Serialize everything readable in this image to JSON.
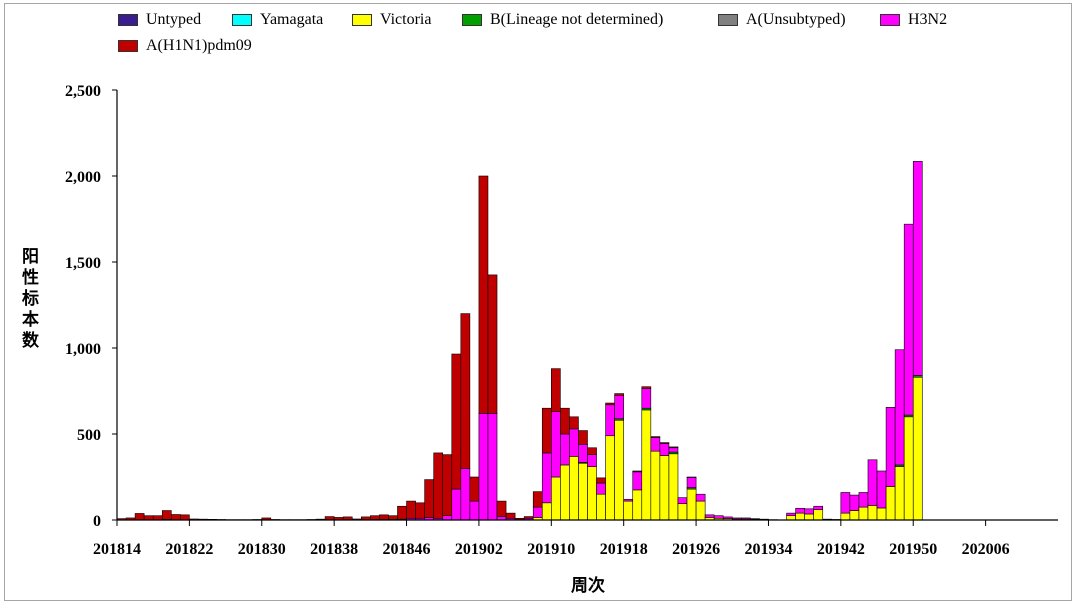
{
  "chart_data": {
    "type": "bar",
    "stacked": true,
    "xlabel": "周次",
    "ylabel": "阳性标本数",
    "ylim": [
      0,
      2500
    ],
    "ytick_labels": [
      "0",
      "500",
      "1,000",
      "1,500",
      "2,000",
      "2,500"
    ],
    "xticks": [
      "201814",
      "201822",
      "201830",
      "201838",
      "201846",
      "201902",
      "201910",
      "201918",
      "201926",
      "201934",
      "201942",
      "201950",
      "202006"
    ],
    "legend": "top",
    "grid": false,
    "categories": [
      201814,
      201815,
      201816,
      201817,
      201818,
      201819,
      201820,
      201821,
      201822,
      201823,
      201824,
      201825,
      201826,
      201827,
      201828,
      201829,
      201830,
      201831,
      201832,
      201833,
      201834,
      201835,
      201836,
      201837,
      201838,
      201839,
      201840,
      201841,
      201842,
      201843,
      201844,
      201845,
      201846,
      201847,
      201848,
      201849,
      201850,
      201851,
      201852,
      201901,
      201902,
      201903,
      201904,
      201905,
      201906,
      201907,
      201908,
      201909,
      201910,
      201911,
      201912,
      201913,
      201914,
      201915,
      201916,
      201917,
      201918,
      201919,
      201920,
      201921,
      201922,
      201923,
      201924,
      201925,
      201926,
      201927,
      201928,
      201929,
      201930,
      201931,
      201932,
      201933,
      201934,
      201935,
      201936,
      201937,
      201938,
      201939,
      201940,
      201941,
      201942,
      201943,
      201944,
      201945,
      201946,
      201947,
      201948,
      201949,
      201950,
      201951,
      201952,
      202001,
      202002,
      202003,
      202004,
      202005,
      202006,
      202007,
      202008,
      202009,
      202010,
      202011,
      202012,
      202013
    ],
    "series": [
      {
        "name": "Untyped",
        "color": "#3B1E8E",
        "values": [
          0,
          0,
          0,
          0,
          0,
          0,
          0,
          0,
          0,
          0,
          0,
          0,
          0,
          0,
          0,
          0,
          0,
          0,
          0,
          0,
          0,
          0,
          0,
          0,
          0,
          0,
          0,
          0,
          0,
          0,
          0,
          0,
          0,
          0,
          0,
          0,
          0,
          0,
          0,
          0,
          0,
          0,
          0,
          0,
          0,
          0,
          0,
          0,
          0,
          0,
          0,
          0,
          0,
          0,
          0,
          0,
          0,
          0,
          0,
          0,
          0,
          0,
          0,
          0,
          0,
          0,
          0,
          0,
          0,
          0,
          0,
          0,
          0,
          0,
          0,
          0,
          0,
          0,
          0,
          0,
          0,
          0,
          0,
          0,
          0,
          0,
          0,
          0,
          0,
          null,
          null,
          null,
          null,
          null,
          null,
          null,
          null,
          null,
          null,
          null,
          null,
          null,
          null,
          null
        ]
      },
      {
        "name": "Yamagata",
        "color": "#00FFFF",
        "values": [
          0,
          0,
          0,
          0,
          0,
          0,
          0,
          0,
          0,
          0,
          0,
          0,
          0,
          0,
          0,
          0,
          0,
          0,
          0,
          0,
          0,
          0,
          0,
          0,
          0,
          0,
          0,
          0,
          0,
          0,
          0,
          0,
          0,
          0,
          0,
          0,
          0,
          0,
          0,
          0,
          0,
          0,
          0,
          0,
          0,
          0,
          0,
          0,
          0,
          0,
          0,
          0,
          0,
          0,
          0,
          0,
          0,
          0,
          0,
          0,
          0,
          0,
          0,
          0,
          0,
          0,
          0,
          0,
          0,
          0,
          0,
          0,
          0,
          0,
          0,
          0,
          0,
          0,
          0,
          0,
          0,
          0,
          0,
          0,
          0,
          0,
          0,
          0,
          0,
          null,
          null,
          null,
          null,
          null,
          null,
          null,
          null,
          null,
          null,
          null,
          null,
          null,
          null,
          null
        ]
      },
      {
        "name": "Victoria",
        "color": "#FFFF00",
        "values": [
          0,
          0,
          0,
          0,
          0,
          0,
          0,
          0,
          0,
          0,
          0,
          0,
          0,
          0,
          0,
          0,
          0,
          0,
          0,
          0,
          0,
          0,
          0,
          0,
          0,
          0,
          0,
          0,
          0,
          0,
          0,
          0,
          0,
          0,
          0,
          0,
          0,
          0,
          0,
          0,
          0,
          0,
          0,
          0,
          0,
          2,
          15,
          100,
          250,
          320,
          370,
          330,
          310,
          150,
          490,
          580,
          110,
          175,
          640,
          400,
          375,
          385,
          95,
          180,
          110,
          15,
          10,
          8,
          6,
          6,
          4,
          2,
          1,
          0,
          25,
          40,
          35,
          60,
          3,
          2,
          40,
          55,
          75,
          85,
          70,
          195,
          310,
          600,
          830,
          null,
          null,
          null,
          null,
          null,
          null,
          null,
          null,
          null,
          null,
          null,
          null,
          null,
          null,
          null
        ]
      },
      {
        "name": "B(Lineage not determined)",
        "color": "#00A000",
        "values": [
          0,
          0,
          0,
          0,
          0,
          0,
          0,
          0,
          0,
          0,
          0,
          0,
          0,
          0,
          0,
          0,
          0,
          0,
          0,
          0,
          0,
          0,
          0,
          0,
          0,
          0,
          0,
          0,
          0,
          0,
          0,
          0,
          0,
          0,
          0,
          0,
          0,
          0,
          0,
          0,
          0,
          0,
          0,
          0,
          0,
          0,
          0,
          0,
          0,
          0,
          0,
          5,
          0,
          0,
          0,
          8,
          0,
          0,
          10,
          0,
          0,
          10,
          0,
          8,
          0,
          0,
          0,
          0,
          0,
          0,
          0,
          0,
          0,
          0,
          0,
          0,
          0,
          0,
          0,
          0,
          0,
          0,
          0,
          0,
          0,
          0,
          10,
          10,
          10,
          null,
          null,
          null,
          null,
          null,
          null,
          null,
          null,
          null,
          null,
          null,
          null,
          null,
          null,
          null
        ]
      },
      {
        "name": "A(Unsubtyped)",
        "color": "#808080",
        "values": [
          0,
          0,
          0,
          0,
          0,
          0,
          0,
          0,
          0,
          0,
          0,
          0,
          0,
          0,
          0,
          0,
          0,
          0,
          0,
          0,
          0,
          0,
          0,
          0,
          0,
          0,
          0,
          0,
          0,
          0,
          0,
          0,
          0,
          0,
          0,
          0,
          0,
          0,
          0,
          0,
          0,
          0,
          0,
          0,
          0,
          0,
          0,
          0,
          0,
          0,
          0,
          0,
          0,
          0,
          0,
          0,
          0,
          0,
          0,
          0,
          0,
          0,
          0,
          0,
          0,
          0,
          0,
          0,
          0,
          0,
          0,
          0,
          0,
          0,
          0,
          0,
          0,
          0,
          0,
          0,
          0,
          0,
          0,
          0,
          0,
          0,
          0,
          0,
          0,
          null,
          null,
          null,
          null,
          null,
          null,
          null,
          null,
          null,
          null,
          null,
          null,
          null,
          null,
          null
        ]
      },
      {
        "name": "H3N2",
        "color": "#FF00FF",
        "values": [
          0,
          0,
          2,
          0,
          0,
          3,
          0,
          0,
          0,
          0,
          0,
          0,
          0,
          0,
          0,
          0,
          0,
          0,
          0,
          0,
          0,
          0,
          0,
          2,
          0,
          2,
          0,
          2,
          3,
          3,
          3,
          5,
          10,
          10,
          15,
          10,
          25,
          180,
          300,
          110,
          620,
          620,
          20,
          10,
          2,
          8,
          60,
          290,
          380,
          180,
          160,
          105,
          70,
          65,
          180,
          137,
          10,
          105,
          115,
          80,
          70,
          25,
          35,
          60,
          40,
          15,
          15,
          10,
          6,
          6,
          4,
          3,
          1,
          0,
          15,
          28,
          30,
          20,
          2,
          1,
          120,
          90,
          85,
          265,
          215,
          460,
          670,
          1110,
          1245,
          null,
          null,
          null,
          null,
          null,
          null,
          null,
          null,
          null,
          null,
          null,
          null,
          null,
          null,
          null
        ]
      },
      {
        "name": "A(H1N1)pdm09",
        "color": "#C00000",
        "values": [
          8,
          12,
          36,
          25,
          25,
          52,
          32,
          30,
          6,
          5,
          4,
          3,
          2,
          2,
          2,
          3,
          12,
          3,
          2,
          2,
          2,
          3,
          5,
          18,
          15,
          16,
          6,
          16,
          22,
          27,
          22,
          75,
          100,
          90,
          220,
          380,
          355,
          785,
          900,
          140,
          1380,
          805,
          90,
          30,
          8,
          10,
          90,
          260,
          250,
          150,
          70,
          80,
          40,
          30,
          10,
          10,
          0,
          5,
          10,
          5,
          5,
          5,
          0,
          2,
          0,
          0,
          0,
          0,
          0,
          0,
          0,
          0,
          0,
          0,
          0,
          0,
          0,
          0,
          0,
          0,
          0,
          0,
          0,
          0,
          0,
          0,
          0,
          0,
          0,
          null,
          null,
          null,
          null,
          null,
          null,
          null,
          null,
          null,
          null,
          null,
          null,
          null,
          null,
          null
        ]
      }
    ]
  }
}
